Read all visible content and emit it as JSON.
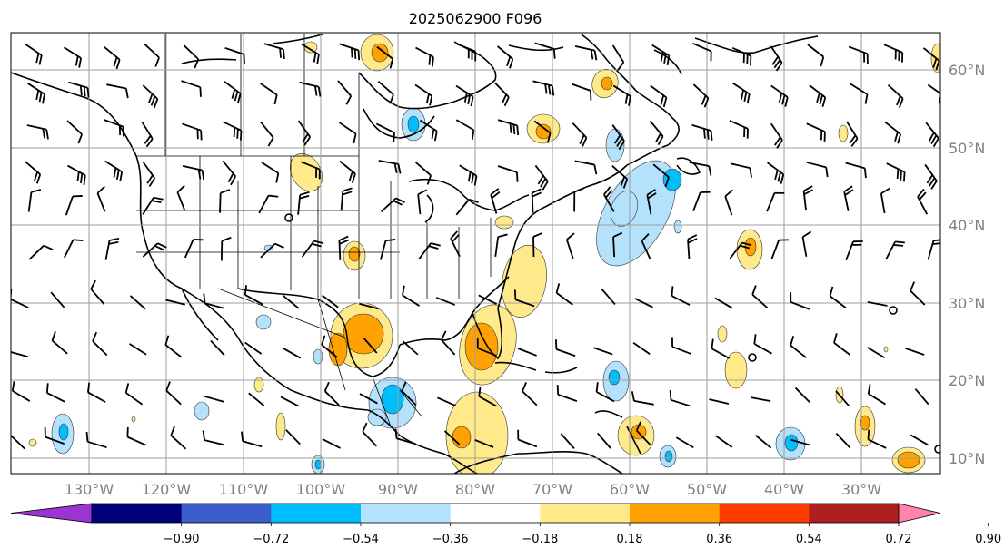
{
  "title": "2025062900 F096",
  "map": {
    "lon_labels": [
      "130°W",
      "120°W",
      "110°W",
      "100°W",
      "90°W",
      "80°W",
      "70°W",
      "60°W",
      "50°W",
      "40°W",
      "30°W"
    ],
    "lat_labels": [
      "60°N",
      "50°N",
      "40°N",
      "30°N",
      "20°N",
      "10°N"
    ],
    "gridlines": true,
    "land_outline_color": "#000000"
  },
  "colorbar": {
    "orientation": "horizontal",
    "extend": "both",
    "tick_labels": [
      "−0.90",
      "−0.72",
      "−0.54",
      "−0.36",
      "−0.18",
      "0.18",
      "0.36",
      "0.54",
      "0.72",
      "0.90"
    ],
    "colors": [
      "#9a35d1",
      "#00007c",
      "#3a5dcb",
      "#00bdfb",
      "#b4e1fb",
      "#ffffff",
      "#fee98b",
      "#ffa100",
      "#ff3d00",
      "#b01f1f",
      "#ff83ac"
    ]
  },
  "shading": {
    "positive_colors": [
      "#fee98b",
      "#ffa100"
    ],
    "negative_colors": [
      "#b4e1fb",
      "#00bdfb"
    ]
  },
  "wind_barbs": {
    "color": "#000000",
    "type": "barbs"
  }
}
